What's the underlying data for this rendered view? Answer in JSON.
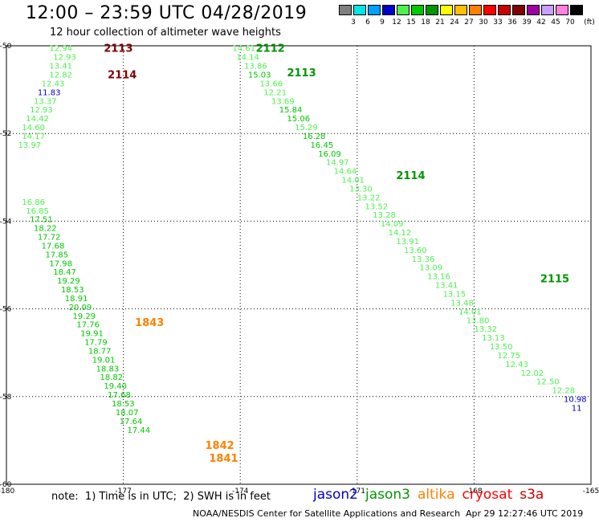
{
  "title": "12:00 – 23:59 UTC 04/28/2019",
  "subtitle": "12 hour collection of altimeter wave heights",
  "legend": {
    "colors": [
      "#7f7f7f",
      "#00e5e5",
      "#00a0ff",
      "#0000c8",
      "#4ef04e",
      "#00c800",
      "#009600",
      "#ffff00",
      "#ffc000",
      "#ff8000",
      "#ff0000",
      "#c80000",
      "#800000",
      "#a000a0",
      "#c8a0ff",
      "#ff80e0",
      "#000000"
    ],
    "labels": [
      "3",
      "6",
      "9",
      "12",
      "15",
      "18",
      "21",
      "24",
      "27",
      "30",
      "33",
      "36",
      "39",
      "42",
      "45",
      "70"
    ],
    "unit": "(ft)"
  },
  "axes": {
    "lon_ticks": [
      "-180",
      "-177",
      "-174",
      "-171",
      "-168",
      "-165"
    ],
    "lat_ticks": [
      "-50",
      "-52",
      "-54",
      "-56",
      "-58",
      "-60"
    ]
  },
  "chart_data": {
    "type": "scatter",
    "lon_range": [
      -180,
      -165
    ],
    "lat_range": [
      -60,
      -50
    ],
    "grid": true,
    "passes": [
      {
        "label": "2113",
        "sat": "cryosat",
        "lon": -177.5,
        "lat": -50.05
      },
      {
        "label": "2114",
        "sat": "cryosat",
        "lon": -177.4,
        "lat": -50.65
      },
      {
        "label": "2112",
        "sat": "jason3",
        "lon": -173.6,
        "lat": -50.05
      },
      {
        "label": "2113",
        "sat": "jason3",
        "lon": -172.8,
        "lat": -50.6
      },
      {
        "label": "2114",
        "sat": "jason3",
        "lon": -170.0,
        "lat": -52.95
      },
      {
        "label": "2115",
        "sat": "jason3",
        "lon": -166.3,
        "lat": -55.3
      },
      {
        "label": "1843",
        "sat": "altika",
        "lon": -176.7,
        "lat": -56.3
      },
      {
        "label": "1842",
        "sat": "altika",
        "lon": -174.9,
        "lat": -59.1
      },
      {
        "label": "1841",
        "sat": "altika",
        "lon": -174.8,
        "lat": -59.4
      }
    ],
    "observations": [
      {
        "v": "12.94",
        "lon": -178.9,
        "lat": -50.05,
        "c": "#4ef04e"
      },
      {
        "v": "12.93",
        "lon": -178.8,
        "lat": -50.25,
        "c": "#4ef04e"
      },
      {
        "v": "13.41",
        "lon": -178.9,
        "lat": -50.45,
        "c": "#4ef04e"
      },
      {
        "v": "12.82",
        "lon": -178.9,
        "lat": -50.65,
        "c": "#4ef04e"
      },
      {
        "v": "12.43",
        "lon": -179.1,
        "lat": -50.85,
        "c": "#4ef04e"
      },
      {
        "v": "11.83",
        "lon": -179.2,
        "lat": -51.05,
        "c": "#0000c8"
      },
      {
        "v": "13.37",
        "lon": -179.3,
        "lat": -51.25,
        "c": "#4ef04e"
      },
      {
        "v": "12.93",
        "lon": -179.4,
        "lat": -51.45,
        "c": "#4ef04e"
      },
      {
        "v": "14.42",
        "lon": -179.5,
        "lat": -51.65,
        "c": "#4ef04e"
      },
      {
        "v": "14.60",
        "lon": -179.6,
        "lat": -51.85,
        "c": "#4ef04e"
      },
      {
        "v": "14.17",
        "lon": -179.6,
        "lat": -52.05,
        "c": "#4ef04e"
      },
      {
        "v": "13.97",
        "lon": -179.7,
        "lat": -52.25,
        "c": "#4ef04e"
      },
      {
        "v": "16.86",
        "lon": -179.6,
        "lat": -53.55,
        "c": "#4ef04e"
      },
      {
        "v": "16.85",
        "lon": -179.5,
        "lat": -53.75,
        "c": "#4ef04e"
      },
      {
        "v": "17.51",
        "lon": -179.4,
        "lat": -53.95,
        "c": "#00c800"
      },
      {
        "v": "18.22",
        "lon": -179.3,
        "lat": -54.15,
        "c": "#00c800"
      },
      {
        "v": "17.72",
        "lon": -179.2,
        "lat": -54.35,
        "c": "#00c800"
      },
      {
        "v": "17.68",
        "lon": -179.1,
        "lat": -54.55,
        "c": "#00c800"
      },
      {
        "v": "17.85",
        "lon": -179.0,
        "lat": -54.75,
        "c": "#00c800"
      },
      {
        "v": "17.98",
        "lon": -178.9,
        "lat": -54.95,
        "c": "#00c800"
      },
      {
        "v": "18.47",
        "lon": -178.8,
        "lat": -55.15,
        "c": "#00c800"
      },
      {
        "v": "19.29",
        "lon": -178.7,
        "lat": -55.35,
        "c": "#00c800"
      },
      {
        "v": "18.53",
        "lon": -178.6,
        "lat": -55.55,
        "c": "#00c800"
      },
      {
        "v": "18.91",
        "lon": -178.5,
        "lat": -55.75,
        "c": "#00c800"
      },
      {
        "v": "20.09",
        "lon": -178.4,
        "lat": -55.95,
        "c": "#00c800"
      },
      {
        "v": "19.29",
        "lon": -178.3,
        "lat": -56.15,
        "c": "#00c800"
      },
      {
        "v": "17.76",
        "lon": -178.2,
        "lat": -56.35,
        "c": "#00c800"
      },
      {
        "v": "19.91",
        "lon": -178.1,
        "lat": -56.55,
        "c": "#00c800"
      },
      {
        "v": "17.79",
        "lon": -178.0,
        "lat": -56.75,
        "c": "#00c800"
      },
      {
        "v": "18.77",
        "lon": -177.9,
        "lat": -56.95,
        "c": "#00c800"
      },
      {
        "v": "19.01",
        "lon": -177.8,
        "lat": -57.15,
        "c": "#00c800"
      },
      {
        "v": "18.83",
        "lon": -177.7,
        "lat": -57.35,
        "c": "#00c800"
      },
      {
        "v": "18.82",
        "lon": -177.6,
        "lat": -57.55,
        "c": "#00c800"
      },
      {
        "v": "19.40",
        "lon": -177.5,
        "lat": -57.75,
        "c": "#00c800"
      },
      {
        "v": "17.68",
        "lon": -177.4,
        "lat": -57.95,
        "c": "#00c800"
      },
      {
        "v": "18.53",
        "lon": -177.3,
        "lat": -58.15,
        "c": "#00c800"
      },
      {
        "v": "18.07",
        "lon": -177.2,
        "lat": -58.35,
        "c": "#00c800"
      },
      {
        "v": "17.64",
        "lon": -177.1,
        "lat": -58.55,
        "c": "#00c800"
      },
      {
        "v": "17.44",
        "lon": -176.9,
        "lat": -58.75,
        "c": "#00c800"
      },
      {
        "v": "14.61",
        "lon": -174.2,
        "lat": -50.05,
        "c": "#4ef04e"
      },
      {
        "v": "14.14",
        "lon": -174.1,
        "lat": -50.25,
        "c": "#4ef04e"
      },
      {
        "v": "13.86",
        "lon": -173.9,
        "lat": -50.45,
        "c": "#4ef04e"
      },
      {
        "v": "15.03",
        "lon": -173.8,
        "lat": -50.65,
        "c": "#00c800"
      },
      {
        "v": "13.66",
        "lon": -173.5,
        "lat": -50.85,
        "c": "#4ef04e"
      },
      {
        "v": "12.21",
        "lon": -173.4,
        "lat": -51.05,
        "c": "#4ef04e"
      },
      {
        "v": "13.69",
        "lon": -173.2,
        "lat": -51.25,
        "c": "#4ef04e"
      },
      {
        "v": "15.84",
        "lon": -173.0,
        "lat": -51.45,
        "c": "#00c800"
      },
      {
        "v": "15.06",
        "lon": -172.8,
        "lat": -51.65,
        "c": "#00c800"
      },
      {
        "v": "15.29",
        "lon": -172.6,
        "lat": -51.85,
        "c": "#4ef04e"
      },
      {
        "v": "16.28",
        "lon": -172.4,
        "lat": -52.05,
        "c": "#00c800"
      },
      {
        "v": "16.45",
        "lon": -172.2,
        "lat": -52.25,
        "c": "#00c800"
      },
      {
        "v": "16.09",
        "lon": -172.0,
        "lat": -52.45,
        "c": "#00c800"
      },
      {
        "v": "14.97",
        "lon": -171.8,
        "lat": -52.65,
        "c": "#4ef04e"
      },
      {
        "v": "14.64",
        "lon": -171.6,
        "lat": -52.85,
        "c": "#4ef04e"
      },
      {
        "v": "14.01",
        "lon": -171.4,
        "lat": -53.05,
        "c": "#4ef04e"
      },
      {
        "v": "13.30",
        "lon": -171.2,
        "lat": -53.25,
        "c": "#4ef04e"
      },
      {
        "v": "13.22",
        "lon": -171.0,
        "lat": -53.45,
        "c": "#4ef04e"
      },
      {
        "v": "13.52",
        "lon": -170.8,
        "lat": -53.65,
        "c": "#4ef04e"
      },
      {
        "v": "13.28",
        "lon": -170.6,
        "lat": -53.85,
        "c": "#4ef04e"
      },
      {
        "v": "14.09",
        "lon": -170.4,
        "lat": -54.05,
        "c": "#4ef04e"
      },
      {
        "v": "14.12",
        "lon": -170.2,
        "lat": -54.25,
        "c": "#4ef04e"
      },
      {
        "v": "13.91",
        "lon": -170.0,
        "lat": -54.45,
        "c": "#4ef04e"
      },
      {
        "v": "13.60",
        "lon": -169.8,
        "lat": -54.65,
        "c": "#4ef04e"
      },
      {
        "v": "13.36",
        "lon": -169.6,
        "lat": -54.85,
        "c": "#4ef04e"
      },
      {
        "v": "13.09",
        "lon": -169.4,
        "lat": -55.05,
        "c": "#4ef04e"
      },
      {
        "v": "13.16",
        "lon": -169.2,
        "lat": -55.25,
        "c": "#4ef04e"
      },
      {
        "v": "13.41",
        "lon": -169.0,
        "lat": -55.45,
        "c": "#4ef04e"
      },
      {
        "v": "13.15",
        "lon": -168.8,
        "lat": -55.65,
        "c": "#4ef04e"
      },
      {
        "v": "13.48",
        "lon": -168.6,
        "lat": -55.85,
        "c": "#4ef04e"
      },
      {
        "v": "14.01",
        "lon": -168.4,
        "lat": -56.05,
        "c": "#4ef04e"
      },
      {
        "v": "13.80",
        "lon": -168.2,
        "lat": -56.25,
        "c": "#4ef04e"
      },
      {
        "v": "13.32",
        "lon": -168.0,
        "lat": -56.45,
        "c": "#4ef04e"
      },
      {
        "v": "13.13",
        "lon": -167.8,
        "lat": -56.65,
        "c": "#4ef04e"
      },
      {
        "v": "13.50",
        "lon": -167.6,
        "lat": -56.85,
        "c": "#4ef04e"
      },
      {
        "v": "12.75",
        "lon": -167.4,
        "lat": -57.05,
        "c": "#4ef04e"
      },
      {
        "v": "12.43",
        "lon": -167.2,
        "lat": -57.25,
        "c": "#4ef04e"
      },
      {
        "v": "12.02",
        "lon": -166.8,
        "lat": -57.45,
        "c": "#4ef04e"
      },
      {
        "v": "12.50",
        "lon": -166.4,
        "lat": -57.65,
        "c": "#4ef04e"
      },
      {
        "v": "12.28",
        "lon": -166.0,
        "lat": -57.85,
        "c": "#4ef04e"
      },
      {
        "v": "10.98",
        "lon": -165.7,
        "lat": -58.05,
        "c": "#0000c8"
      },
      {
        "v": "11",
        "lon": -165.5,
        "lat": -58.25,
        "c": "#0000c8"
      }
    ]
  },
  "note": "note:  1) Time is in UTC;  2) SWH is in feet",
  "satellites": [
    {
      "name": "jason2",
      "color": "#0000c8"
    },
    {
      "name": "jason3",
      "color": "#009600"
    },
    {
      "name": "altika",
      "color": "#ff8000"
    },
    {
      "name": "cryosat",
      "color": "#ff0000"
    },
    {
      "name": "s3a",
      "color": "#c80000"
    }
  ],
  "credit": "NOAA/NESDIS Center for Satellite Applications and Research",
  "timestamp": "Apr 29 12:27:46 UTC 2019"
}
